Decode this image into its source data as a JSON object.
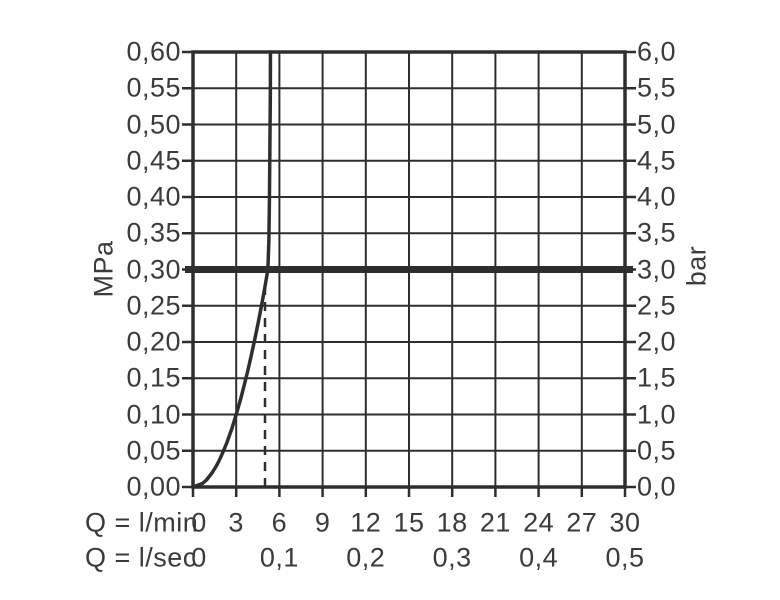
{
  "colors": {
    "ink": "#3b3b3b",
    "line": "#2e2e2e",
    "background": "#ffffff"
  },
  "chart_data": {
    "type": "line",
    "title": "",
    "grid": true,
    "legend": "none",
    "x_axis": {
      "primary": {
        "label": "Q = l/min",
        "tick_values": [
          0,
          3,
          6,
          9,
          12,
          15,
          18,
          21,
          24,
          27,
          30
        ],
        "tick_labels": [
          "0",
          "3",
          "6",
          "9",
          "12",
          "15",
          "18",
          "21",
          "24",
          "27",
          "30"
        ],
        "range": [
          0,
          30
        ]
      },
      "secondary": {
        "label": "Q = l/sec",
        "tick_values_lmin": [
          0,
          6,
          12,
          18,
          24,
          30
        ],
        "tick_labels": [
          "0",
          "0,1",
          "0,2",
          "0,3",
          "0,4",
          "0,5"
        ],
        "range_lsec": [
          0,
          0.5
        ]
      }
    },
    "y_axis_left": {
      "label": "MPa",
      "tick_values": [
        0.6,
        0.55,
        0.5,
        0.45,
        0.4,
        0.35,
        0.3,
        0.25,
        0.2,
        0.15,
        0.1,
        0.05,
        0.0
      ],
      "tick_labels": [
        "0,60",
        "0,55",
        "0,50",
        "0,45",
        "0,40",
        "0,35",
        "0,30",
        "0,25",
        "0,20",
        "0,15",
        "0,10",
        "0,05",
        "0,00"
      ],
      "range": [
        0,
        0.6
      ]
    },
    "y_axis_right": {
      "label": "bar",
      "tick_values": [
        6.0,
        5.5,
        5.0,
        4.5,
        4.0,
        3.5,
        3.0,
        2.5,
        2.0,
        1.5,
        1.0,
        0.5,
        0.0
      ],
      "tick_labels": [
        "6,0",
        "5,5",
        "5,0",
        "4,5",
        "4,0",
        "3,5",
        "3,0",
        "2,5",
        "2,0",
        "1,5",
        "1,0",
        "0,5",
        "0,0"
      ],
      "range": [
        0,
        6
      ]
    },
    "series": [
      {
        "name": "flow-rate-curve",
        "points_lmin_mpa": [
          [
            0,
            0
          ],
          [
            0.67,
            0.005
          ],
          [
            0.95,
            0.01
          ],
          [
            1.34,
            0.02
          ],
          [
            1.65,
            0.03
          ],
          [
            1.9,
            0.04
          ],
          [
            2.12,
            0.05
          ],
          [
            2.33,
            0.06
          ],
          [
            2.69,
            0.08
          ],
          [
            3.0,
            0.1
          ],
          [
            3.29,
            0.12
          ],
          [
            3.55,
            0.14
          ],
          [
            3.8,
            0.16
          ],
          [
            4.03,
            0.18
          ],
          [
            4.25,
            0.2
          ],
          [
            4.46,
            0.22
          ],
          [
            4.66,
            0.24
          ],
          [
            4.85,
            0.26
          ],
          [
            5.03,
            0.28
          ],
          [
            5.2,
            0.3
          ],
          [
            5.27,
            0.34
          ],
          [
            5.31,
            0.4
          ],
          [
            5.34,
            0.47
          ],
          [
            5.37,
            0.54
          ],
          [
            5.38,
            0.6
          ]
        ]
      }
    ],
    "reference_line": {
      "orientation": "horizontal",
      "value_mpa": 0.3,
      "value_bar": 3.0,
      "style": "thick-solid"
    },
    "marker_line": {
      "orientation": "vertical",
      "value_lmin": 5,
      "extends_to_mpa": 0.277,
      "style": "dashed"
    }
  }
}
